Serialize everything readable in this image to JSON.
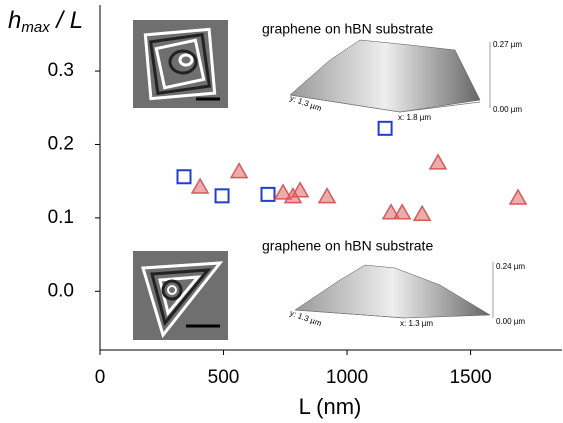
{
  "chart_data": {
    "type": "scatter",
    "ylabel": {
      "main": "h",
      "sub": "max",
      "rest": " / L"
    },
    "xlabel": "L (nm)",
    "xlim": [
      0,
      1870
    ],
    "ylim": [
      -0.08,
      0.39
    ],
    "xticks": [
      0,
      500,
      1000,
      1500
    ],
    "yticks": [
      {
        "value": 0,
        "label": "0.0"
      },
      0.1,
      0.2,
      0.3
    ],
    "series": [
      {
        "marker": "square",
        "color": "#1f3fc8",
        "x": [
          340,
          494,
          680,
          1154
        ],
        "values": [
          0.156,
          0.13,
          0.132,
          0.222
        ]
      },
      {
        "marker": "triangle",
        "color": "#d65a5a",
        "x": [
          405,
          563,
          741,
          781,
          810,
          919,
          1178,
          1223,
          1304,
          1368,
          1692
        ],
        "values": [
          0.142,
          0.163,
          0.134,
          0.129,
          0.137,
          0.129,
          0.107,
          0.107,
          0.105,
          0.175,
          0.127
        ]
      }
    ],
    "annotations": [
      "graphene on hBN substrate",
      "0.27 µm",
      "0.00 µm",
      "y: 1.3 µm",
      "x: 1.8 µm",
      "graphene on hBN substrate",
      "0.24 µm",
      "0.00 µm",
      "y: 1.3 µm",
      "x: 1.3 µm"
    ]
  }
}
